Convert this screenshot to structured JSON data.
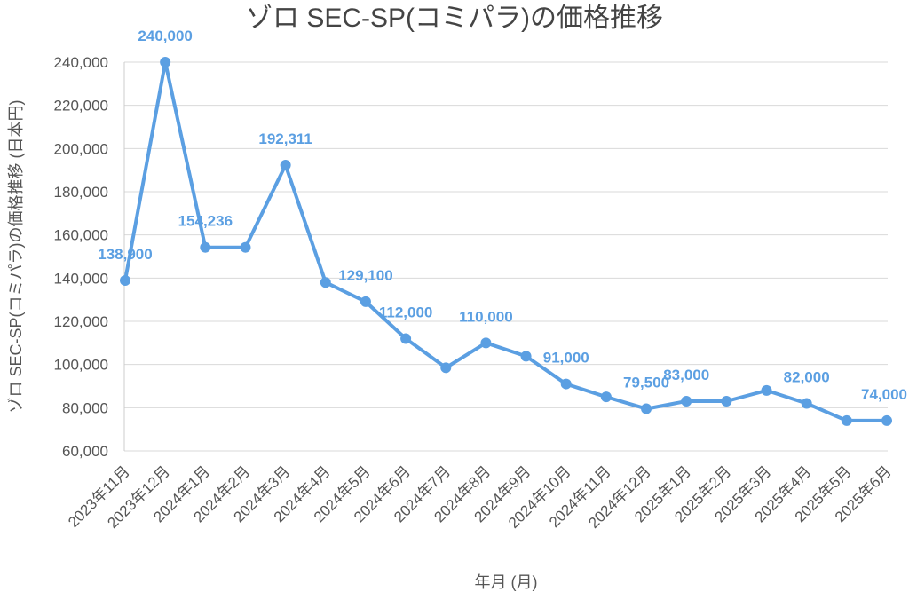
{
  "chart_data": {
    "type": "line",
    "title": "ゾロ SEC-SP(コミパラ)の価格推移",
    "xlabel": "年月 (月)",
    "ylabel": "ゾロ SEC-SP(コミパラ)の価格推移 (日本円)",
    "categories": [
      "2023年11月",
      "2023年12月",
      "2024年1月",
      "2024年2月",
      "2024年3月",
      "2024年4月",
      "2024年5月",
      "2024年6月",
      "2024年7月",
      "2024年8月",
      "2024年9月",
      "2024年10月",
      "2024年11月",
      "2024年12月",
      "2025年1月",
      "2025年2月",
      "2025年3月",
      "2025年4月",
      "2025年5月",
      "2025年6月"
    ],
    "series": [
      {
        "values": [
          138900,
          240000,
          154236,
          154236,
          192311,
          138000,
          129100,
          112000,
          98500,
          110000,
          103800,
          91000,
          85000,
          79500,
          83000,
          83000,
          88000,
          82000,
          74000,
          74000
        ],
        "data_labels": [
          "138,900",
          "240,000",
          "154,236",
          "",
          "192,311",
          "",
          "129,100",
          "112,000",
          "",
          "110,000",
          "",
          "91,000",
          "",
          "79,500",
          "83,000",
          "",
          "",
          "82,000",
          "",
          "74,000"
        ],
        "color": "#5b9fe2"
      }
    ],
    "yticks": [
      "60,000",
      "80,000",
      "100,000",
      "120,000",
      "140,000",
      "160,000",
      "180,000",
      "200,000",
      "220,000",
      "240,000"
    ],
    "ylim": [
      60000,
      240000
    ],
    "grid": true,
    "legend": "none"
  }
}
